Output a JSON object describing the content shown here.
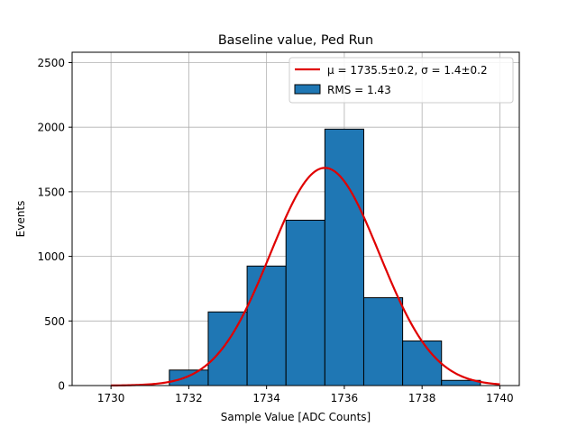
{
  "chart_data": {
    "type": "bar",
    "title": "Baseline value, Ped Run",
    "xlabel": "Sample Value [ADC Counts]",
    "ylabel": "Events",
    "xlim": [
      1729.0,
      1740.5
    ],
    "ylim": [
      0,
      2580
    ],
    "xticks": [
      1730,
      1732,
      1734,
      1736,
      1738,
      1740
    ],
    "yticks": [
      0,
      500,
      1000,
      1500,
      2000,
      2500
    ],
    "grid": true,
    "legend_position": "top-right",
    "histogram": {
      "name": "RMS = 1.43",
      "color": "#1f77b4",
      "edge_color": "#000000",
      "bins": [
        {
          "x0": 1729.5,
          "x1": 1730.5,
          "count": 0
        },
        {
          "x0": 1730.5,
          "x1": 1731.5,
          "count": 0
        },
        {
          "x0": 1731.5,
          "x1": 1732.5,
          "count": 120
        },
        {
          "x0": 1732.5,
          "x1": 1733.5,
          "count": 570
        },
        {
          "x0": 1733.5,
          "x1": 1734.5,
          "count": 925
        },
        {
          "x0": 1734.5,
          "x1": 1735.5,
          "count": 1280
        },
        {
          "x0": 1735.5,
          "x1": 1736.5,
          "count": 1985
        },
        {
          "x0": 1736.5,
          "x1": 1737.5,
          "count": 680
        },
        {
          "x0": 1737.5,
          "x1": 1738.5,
          "count": 345
        },
        {
          "x0": 1738.5,
          "x1": 1739.5,
          "count": 40
        }
      ]
    },
    "fit": {
      "name": "μ = 1735.5±0.2, σ = 1.4±0.2",
      "color": "#e00000",
      "mu": 1735.5,
      "sigma": 1.4,
      "amplitude": 1685,
      "x_range": [
        1730,
        1740
      ]
    }
  }
}
